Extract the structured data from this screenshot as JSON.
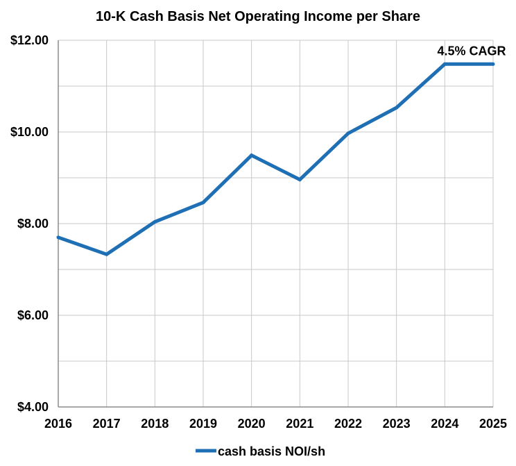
{
  "chart_data": {
    "type": "line",
    "title": "10-K Cash Basis Net Operating Income per Share",
    "x": [
      "2016",
      "2017",
      "2018",
      "2019",
      "2020",
      "2021",
      "2022",
      "2023",
      "2024",
      "2025"
    ],
    "series": [
      {
        "name": "cash basis NOI/sh",
        "values": [
          7.7,
          7.33,
          8.04,
          8.46,
          9.49,
          8.96,
          9.97,
          10.53,
          11.48,
          11.48
        ],
        "color": "#1f6fb5"
      }
    ],
    "y_ticks": [
      "$12.00",
      "$10.00",
      "$8.00",
      "$6.00",
      "$4.00"
    ],
    "y_tick_values": [
      12,
      10,
      8,
      6,
      4
    ],
    "ylim": [
      4,
      12
    ],
    "grid": "both",
    "legend": "bottom",
    "annotation": {
      "text": "4.5% CAGR",
      "x": "2025",
      "y": 11.48
    }
  }
}
